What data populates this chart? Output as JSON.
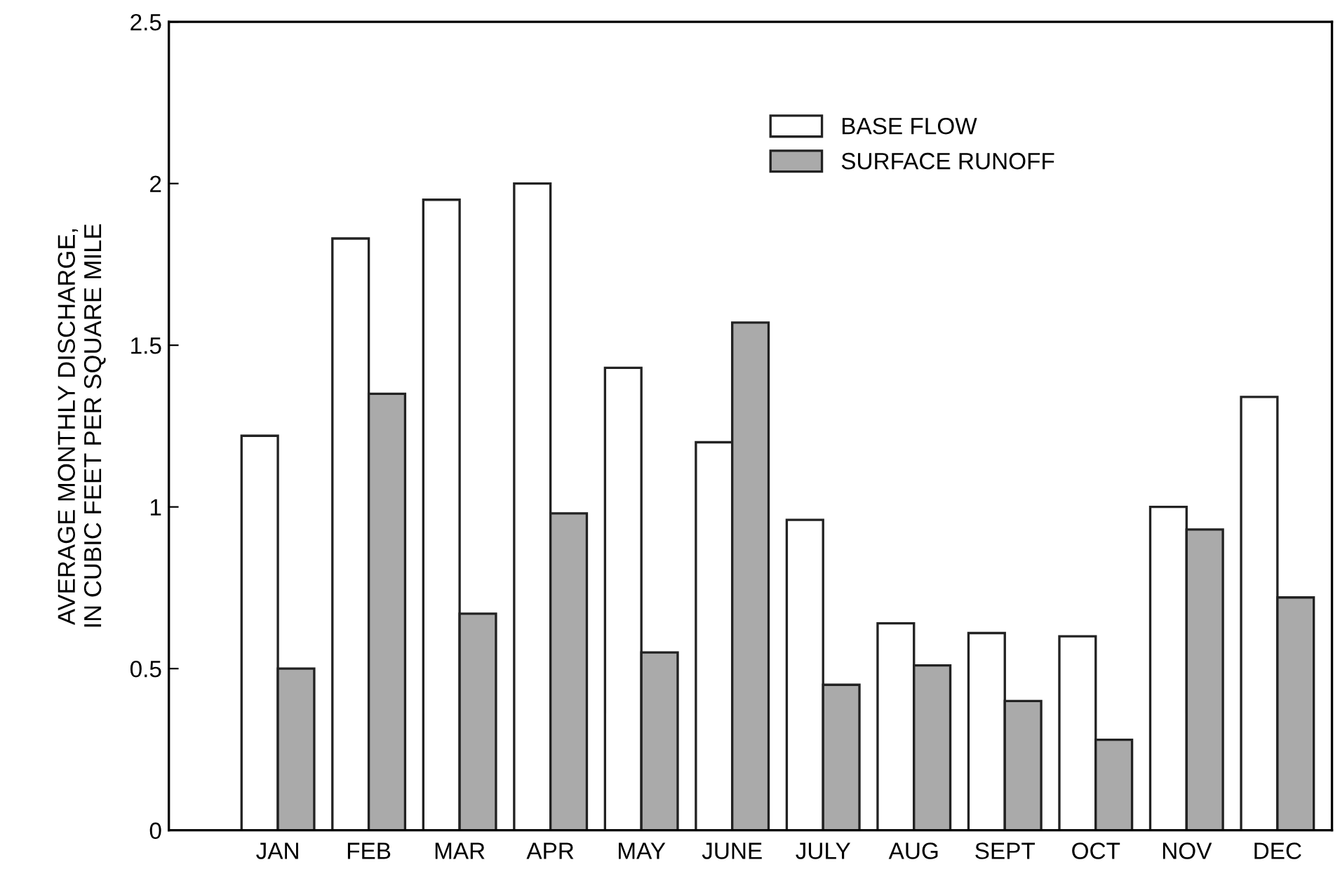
{
  "chart_data": {
    "type": "bar",
    "ylabel": "AVERAGE MONTHLY DISCHARGE,\nIN CUBIC FEET PER SQUARE MILE",
    "categories": [
      "JAN",
      "FEB",
      "MAR",
      "APR",
      "MAY",
      "JUNE",
      "JULY",
      "AUG",
      "SEPT",
      "OCT",
      "NOV",
      "DEC"
    ],
    "series": [
      {
        "name": "BASE FLOW",
        "color": "#ffffff",
        "values": [
          1.22,
          1.83,
          1.95,
          2.0,
          1.43,
          1.2,
          0.96,
          0.64,
          0.61,
          0.6,
          1.0,
          1.34
        ]
      },
      {
        "name": "SURFACE RUNOFF",
        "color": "#aaaaaa",
        "values": [
          0.5,
          1.35,
          0.67,
          0.98,
          0.55,
          1.57,
          0.45,
          0.51,
          0.4,
          0.28,
          0.93,
          0.72
        ]
      }
    ],
    "ylim": [
      0,
      2.5
    ],
    "yticks": [
      0,
      0.5,
      1,
      1.5,
      2,
      2.5
    ],
    "grid": false,
    "legend": "top right"
  }
}
